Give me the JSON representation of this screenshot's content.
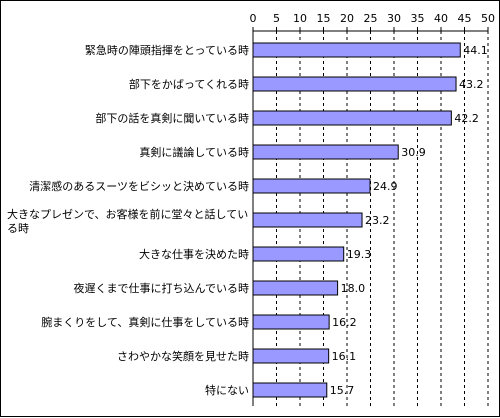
{
  "chart_data": {
    "type": "bar",
    "orientation": "horizontal",
    "categories": [
      "緊急時の陣頭指揮をとっている時",
      "部下をかばってくれる時",
      "部下の話を真剣に聞いている時",
      "真剣に議論している時",
      "清潔感のあるスーツをビシッと決めている時",
      "大きなプレゼンで、お客様を前に堂々と話している時",
      "大きな仕事を決めた時",
      "夜遅くまで仕事に打ち込んでいる時",
      "腕まくりをして、真剣に仕事をしている時",
      "さわやかな笑顔を見せた時",
      "特にない"
    ],
    "values": [
      44.1,
      43.2,
      42.2,
      30.9,
      24.9,
      23.2,
      19.3,
      18.0,
      16.2,
      16.1,
      15.7
    ],
    "value_labels": [
      "44.1",
      "43.2",
      "42.2",
      "30.9",
      "24.9",
      "23.2",
      "19.3",
      "18.0",
      "16.2",
      "16.1",
      "15.7"
    ],
    "xlim": [
      0,
      50
    ],
    "xticks": [
      "0",
      "5",
      "10",
      "15",
      "20",
      "25",
      "30",
      "35",
      "40",
      "45",
      "50"
    ],
    "axis_position": "top",
    "grid": true,
    "bar_color": "#9999ff",
    "bar_border_color": "#000000",
    "grid_color": "#000000"
  }
}
